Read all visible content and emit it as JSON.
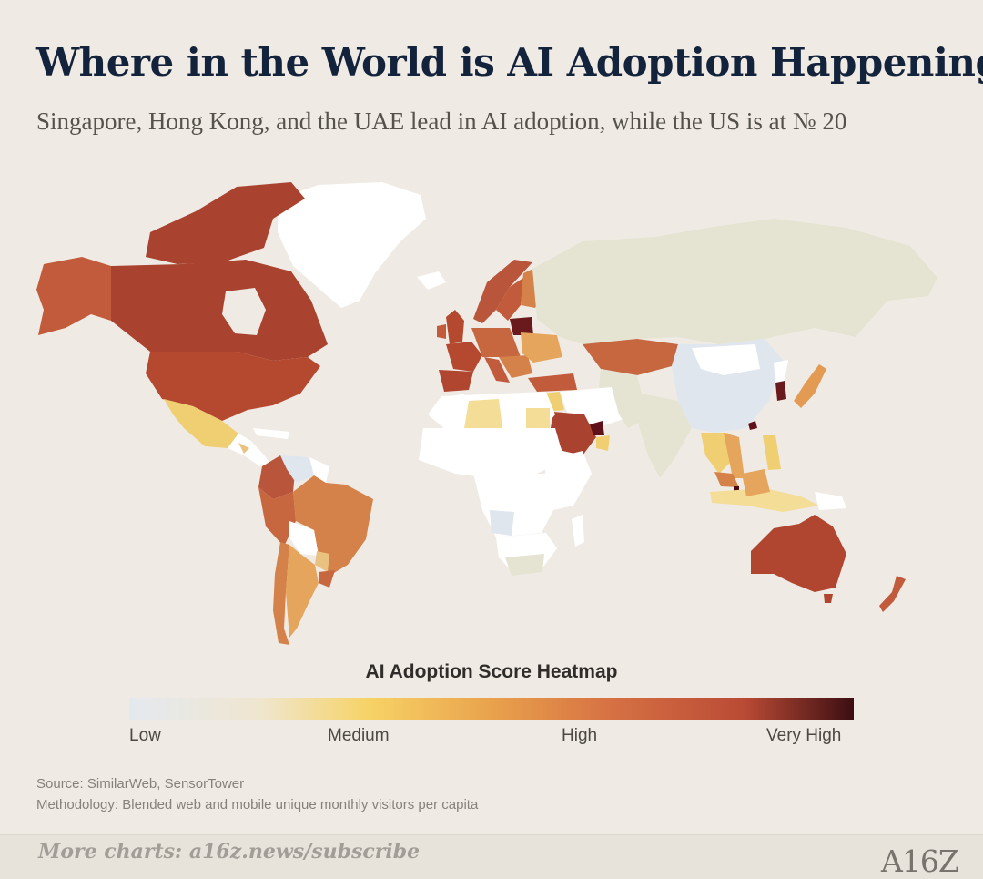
{
  "header": {
    "title": "Where in the World is AI Adoption Happening?",
    "subtitle": "Singapore, Hong Kong, and the UAE lead in AI adoption, while the US is at № 20"
  },
  "legend": {
    "title": "AI Adoption Score Heatmap",
    "low": "Low",
    "medium": "Medium",
    "high": "High",
    "very_high": "Very High"
  },
  "colors": {
    "very_high": "#5e1118",
    "high_dark": "#b24a33",
    "high": "#c65e3b",
    "med_high": "#d5824a",
    "medium": "#e6a55c",
    "med_low": "#f0cf72",
    "low_yellow": "#f4dd97",
    "low": "#dfe6ee",
    "very_low": "#e5e4d3",
    "no_data": "#ffffff"
  },
  "source": {
    "source_line": "Source: SimilarWeb, SensorTower",
    "method_line": "Methodology: Blended web and mobile unique monthly visitors per capita"
  },
  "footer": {
    "cta": "More charts: a16z.news/subscribe",
    "logo": "A16Z"
  }
}
